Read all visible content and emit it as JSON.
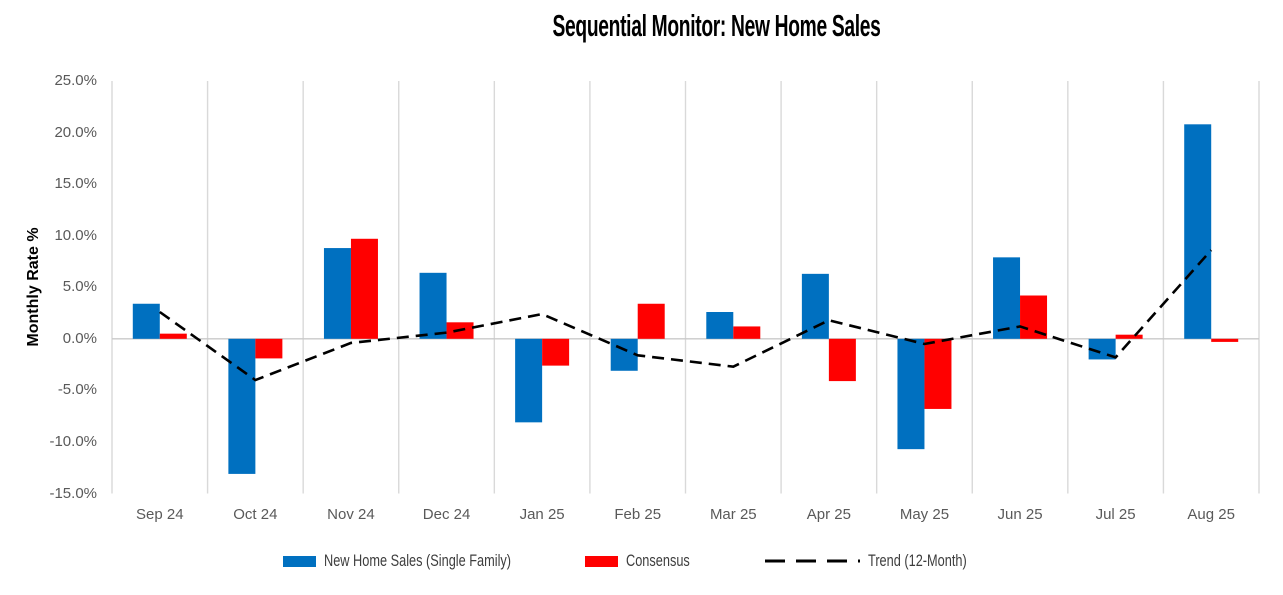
{
  "title": "Sequential Monitor: New Home Sales",
  "colors": {
    "new_home_sales": "#0070C0",
    "consensus": "#FF0000",
    "trend": "#000000",
    "gridline": "#D9D9D9",
    "zero_line": "#C9C9C9",
    "axis_text": "#595959"
  },
  "chart_data": {
    "type": "bar",
    "title": "Sequential Monitor: New Home Sales",
    "xlabel": "",
    "ylabel": "Monthly Rate %",
    "categories": [
      "Sep 24",
      "Oct 24",
      "Nov 24",
      "Dec 24",
      "Jan 25",
      "Feb 25",
      "Mar 25",
      "Apr 25",
      "May 25",
      "Jun 25",
      "Jul 25",
      "Aug 25"
    ],
    "series": [
      {
        "name": "New Home Sales (Single Family)",
        "type": "bar",
        "color": "#0070C0",
        "values": [
          3.4,
          -13.1,
          8.8,
          6.4,
          -8.1,
          -3.1,
          2.6,
          6.3,
          -10.7,
          7.9,
          -2.0,
          20.8
        ]
      },
      {
        "name": "Consensus",
        "type": "bar",
        "color": "#FF0000",
        "values": [
          0.5,
          -1.9,
          9.7,
          1.6,
          -2.6,
          3.4,
          1.2,
          -4.1,
          -6.8,
          4.2,
          0.4,
          -0.3
        ]
      },
      {
        "name": "Trend (12-Month)",
        "type": "line",
        "style": "dashed",
        "color": "#000000",
        "values": [
          2.6,
          -4.0,
          -0.4,
          0.6,
          2.4,
          -1.6,
          -2.7,
          1.8,
          -0.5,
          1.2,
          -1.8,
          8.6
        ]
      }
    ],
    "ylim": [
      -15,
      25
    ],
    "ytick_step": 5,
    "ytick_labels": [
      "25.0%",
      "20.0%",
      "15.0%",
      "10.0%",
      "5.0%",
      "0.0%",
      "-5.0%",
      "-10.0%",
      "-15.0%"
    ],
    "grid": "vertical",
    "legend_position": "bottom"
  }
}
